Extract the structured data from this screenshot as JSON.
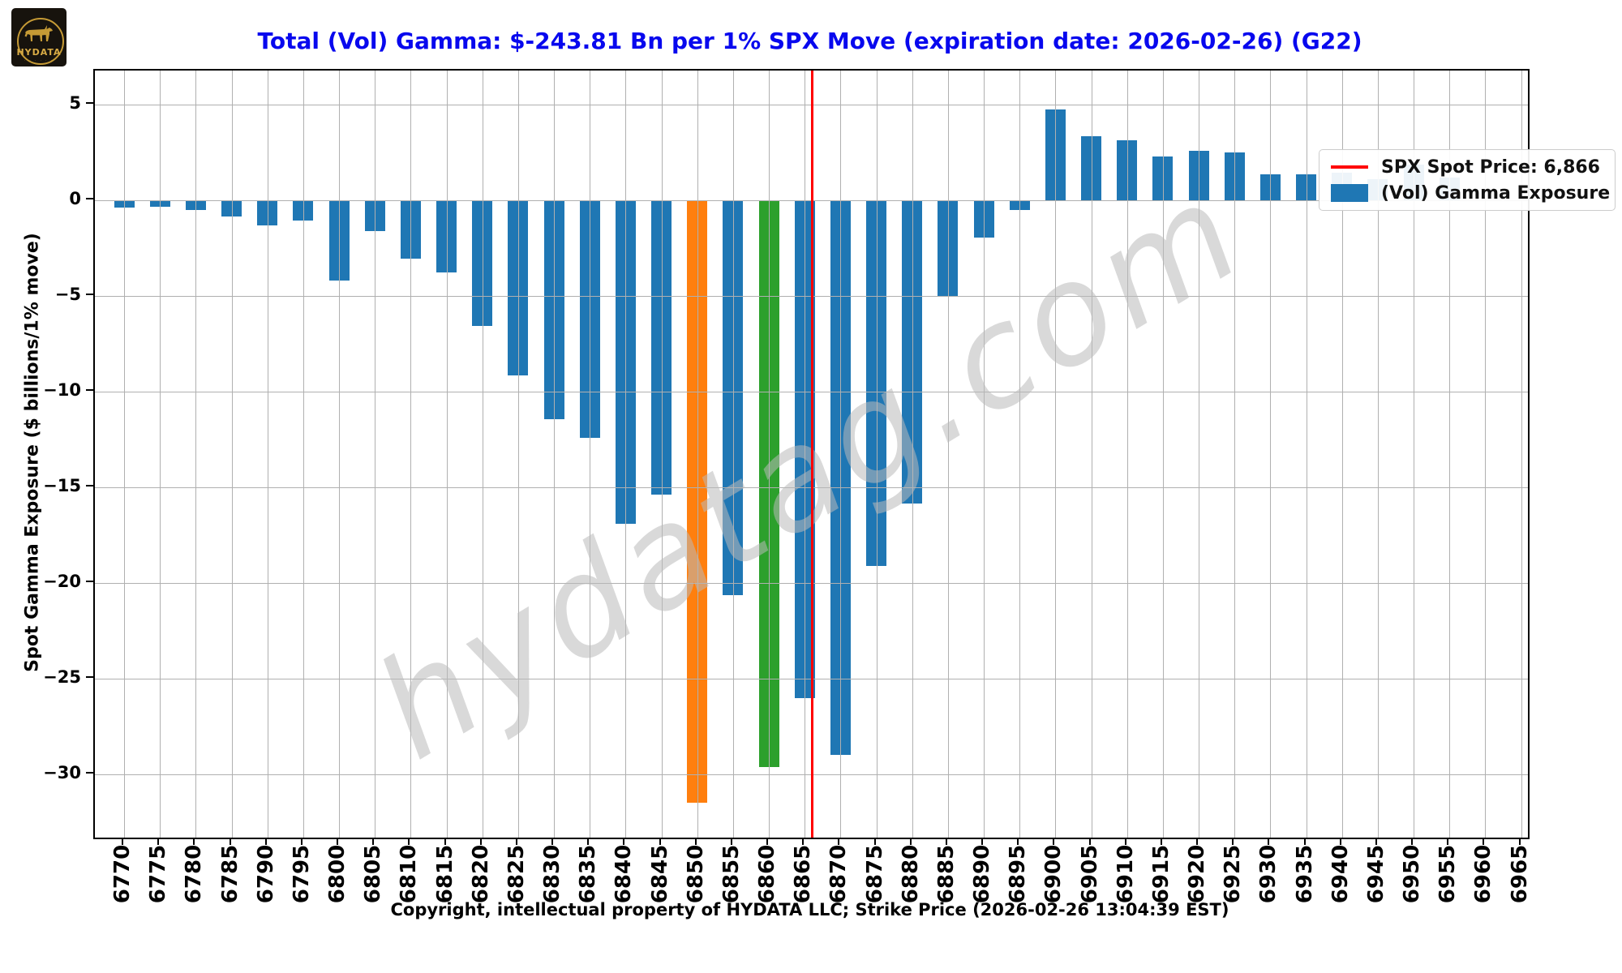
{
  "logo": {
    "brand": "HYDATA"
  },
  "title": "Total (Vol) Gamma: $-243.81 Bn per 1% SPX Move (expiration date: 2026-02-26) (G22)",
  "legend": {
    "spot_label": "SPX Spot Price: 6,866",
    "gamma_label": "(Vol) Gamma Exposure"
  },
  "watermark": "hydatag.com",
  "caption": "Copyright, intellectual property of HYDATA LLC; Strike Price (2026-02-26 13:04:39 EST)",
  "colors": {
    "bar_default": "#1f77b4",
    "bar_orange": "#ff7f0e",
    "bar_green": "#2ca02c",
    "spot_line": "#ff0000",
    "grid": "#b0b0b0",
    "title": "#0808ee"
  },
  "chart_data": {
    "type": "bar",
    "title": "Total (Vol) Gamma: $-243.81 Bn per 1% SPX Move (expiration date: 2026-02-26) (G22)",
    "ylabel": "Spot Gamma Exposure ($ billions/1% move)",
    "xlabel": "Strike Price",
    "categories": [
      "6770",
      "6775",
      "6780",
      "6785",
      "6790",
      "6795",
      "6800",
      "6805",
      "6810",
      "6815",
      "6820",
      "6825",
      "6830",
      "6835",
      "6840",
      "6845",
      "6850",
      "6855",
      "6860",
      "6865",
      "6870",
      "6875",
      "6880",
      "6885",
      "6890",
      "6895",
      "6900",
      "6905",
      "6910",
      "6915",
      "6920",
      "6925",
      "6930",
      "6935",
      "6940",
      "6945",
      "6950",
      "6955",
      "6960",
      "6965"
    ],
    "values": [
      -0.4,
      -0.35,
      -0.5,
      -0.85,
      -1.3,
      -1.05,
      -4.2,
      -1.6,
      -3.05,
      -3.75,
      -6.55,
      -9.15,
      -11.45,
      -12.4,
      -16.9,
      -15.4,
      -31.5,
      -20.65,
      -29.6,
      -26.0,
      -29.0,
      -19.1,
      -15.85,
      -5.05,
      -1.95,
      -0.5,
      4.75,
      3.35,
      3.15,
      2.3,
      2.6,
      2.5,
      1.35,
      1.35,
      1.45,
      1.1,
      1.85,
      1.2,
      0,
      0
    ],
    "highlight_colors": {
      "6850": "#ff7f0e",
      "6860": "#2ca02c"
    },
    "total_gamma_bn": -243.81,
    "spot_price": 6866,
    "expiration_date": "2026-02-26",
    "yticks": [
      "5",
      "0",
      "−5",
      "−10",
      "−15",
      "−20",
      "−25",
      "−30"
    ],
    "ytick_values": [
      5,
      0,
      -5,
      -10,
      -15,
      -20,
      -25,
      -30
    ],
    "ylim": [
      -33.3,
      6.8
    ],
    "grid": true,
    "legend_position": "upper right",
    "legend_entries": [
      "SPX Spot Price: 6,866",
      "(Vol) Gamma Exposure"
    ]
  }
}
